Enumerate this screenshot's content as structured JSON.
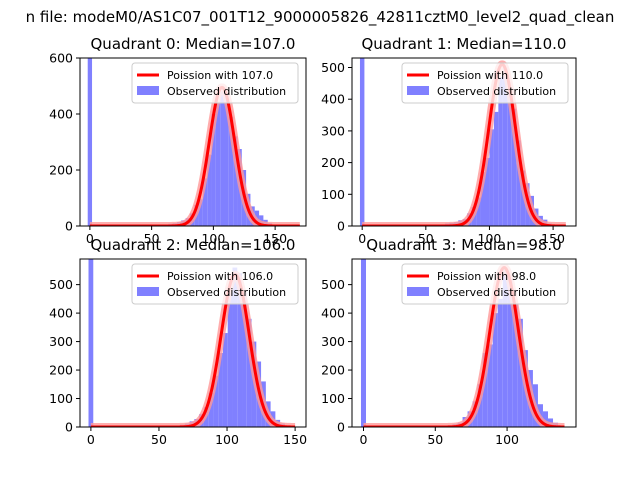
{
  "figure_title": "n file: modeM0/AS1C07_001T12_9000005826_42811cztM0_level2_quad_clean",
  "legend_labels": {
    "fit_prefix": "Poission with",
    "observed": "Observed distribution"
  },
  "colors": {
    "fit_line": "#ff0000",
    "histogram": "#8080ff",
    "fit_halo": "#ff9999",
    "axis": "#000000"
  },
  "chart_data": [
    {
      "type": "bar",
      "title": "Quadrant 0: Median=107.0",
      "median": 107.0,
      "legend": [
        "Poission with 107.0",
        "Observed distribution"
      ],
      "legend_position": "top-right",
      "xlim": [
        -8,
        175
      ],
      "ylim": [
        0,
        600
      ],
      "xticks": [
        0,
        50,
        100,
        150
      ],
      "yticks": [
        0,
        200,
        400,
        600
      ],
      "bin_width": 3.5,
      "zero_bin": {
        "x": 0,
        "value": 600
      },
      "bins_x": [
        60,
        63.5,
        67,
        70.5,
        74,
        77.5,
        81,
        84.5,
        88,
        91.5,
        95,
        98.5,
        102,
        105.5,
        109,
        112.5,
        116,
        119.5,
        123,
        126.5,
        130,
        133.5,
        137,
        140.5,
        144,
        147.5
      ],
      "bins_y": [
        3,
        8,
        10,
        14,
        20,
        28,
        45,
        75,
        95,
        170,
        255,
        400,
        445,
        480,
        470,
        390,
        320,
        275,
        200,
        115,
        70,
        55,
        38,
        22,
        10,
        4
      ],
      "fit": {
        "lambda": 107.0,
        "x_range": [
          0,
          170
        ],
        "peak": 495
      }
    },
    {
      "type": "bar",
      "title": "Quadrant 1: Median=110.0",
      "median": 110.0,
      "legend": [
        "Poission with 110.0",
        "Observed distribution"
      ],
      "legend_position": "top-right",
      "xlim": [
        -8,
        168
      ],
      "ylim": [
        0,
        530
      ],
      "xticks": [
        0,
        50,
        100,
        150
      ],
      "yticks": [
        0,
        100,
        200,
        300,
        400,
        500
      ],
      "bin_width": 3.5,
      "zero_bin": {
        "x": 0,
        "value": 530
      },
      "bins_x": [
        58,
        61.5,
        65,
        68.5,
        72,
        75.5,
        79,
        82.5,
        86,
        89.5,
        93,
        96.5,
        100,
        103.5,
        107,
        110.5,
        114,
        117.5,
        121,
        124.5,
        128,
        131.5,
        135,
        138.5,
        142,
        145.5
      ],
      "bins_y": [
        3,
        5,
        8,
        10,
        12,
        18,
        22,
        40,
        60,
        90,
        170,
        215,
        305,
        360,
        470,
        500,
        420,
        370,
        270,
        175,
        135,
        95,
        55,
        32,
        20,
        8
      ],
      "fit": {
        "lambda": 110.0,
        "x_range": [
          0,
          160
        ],
        "peak": 510
      }
    },
    {
      "type": "bar",
      "title": "Quadrant 2: Median=106.0",
      "median": 106.0,
      "legend": [
        "Poission with 106.0",
        "Observed distribution"
      ],
      "legend_position": "top-right",
      "xlim": [
        -8,
        158
      ],
      "ylim": [
        0,
        590
      ],
      "xticks": [
        0,
        50,
        100,
        150
      ],
      "yticks": [
        0,
        100,
        200,
        300,
        400,
        500
      ],
      "bin_width": 3.5,
      "zero_bin": {
        "x": 0,
        "value": 590
      },
      "bins_x": [
        62,
        65.5,
        69,
        72.5,
        76,
        79.5,
        83,
        86.5,
        90,
        93.5,
        97,
        100.5,
        104,
        107.5,
        111,
        114.5,
        118,
        121.5,
        125,
        128.5,
        132,
        135.5,
        139,
        142.5
      ],
      "bins_y": [
        5,
        8,
        12,
        20,
        28,
        45,
        70,
        120,
        180,
        260,
        330,
        470,
        560,
        540,
        470,
        380,
        300,
        230,
        160,
        90,
        55,
        25,
        12,
        5
      ],
      "fit": {
        "lambda": 106.0,
        "x_range": [
          0,
          150
        ],
        "peak": 535
      }
    },
    {
      "type": "bar",
      "title": "Quadrant 3: Median=98.0",
      "median": 98.0,
      "legend": [
        "Poission with 98.0",
        "Observed distribution"
      ],
      "legend_position": "top-right",
      "xlim": [
        -8,
        148
      ],
      "ylim": [
        0,
        590
      ],
      "xticks": [
        0,
        50,
        100
      ],
      "yticks": [
        0,
        100,
        200,
        300,
        400,
        500
      ],
      "bin_width": 3.5,
      "zero_bin": {
        "x": 0,
        "value": 590
      },
      "bins_x": [
        55,
        58.5,
        62,
        65.5,
        69,
        72.5,
        76,
        79.5,
        83,
        86.5,
        90,
        93.5,
        97,
        100.5,
        104,
        107.5,
        111,
        114.5,
        118,
        121.5,
        125,
        128.5,
        132,
        135.5
      ],
      "bins_y": [
        3,
        6,
        10,
        15,
        35,
        55,
        90,
        150,
        260,
        290,
        400,
        450,
        560,
        520,
        430,
        380,
        270,
        200,
        150,
        80,
        55,
        30,
        15,
        5
      ],
      "fit": {
        "lambda": 98.0,
        "x_range": [
          0,
          140
        ],
        "peak": 560
      }
    }
  ]
}
